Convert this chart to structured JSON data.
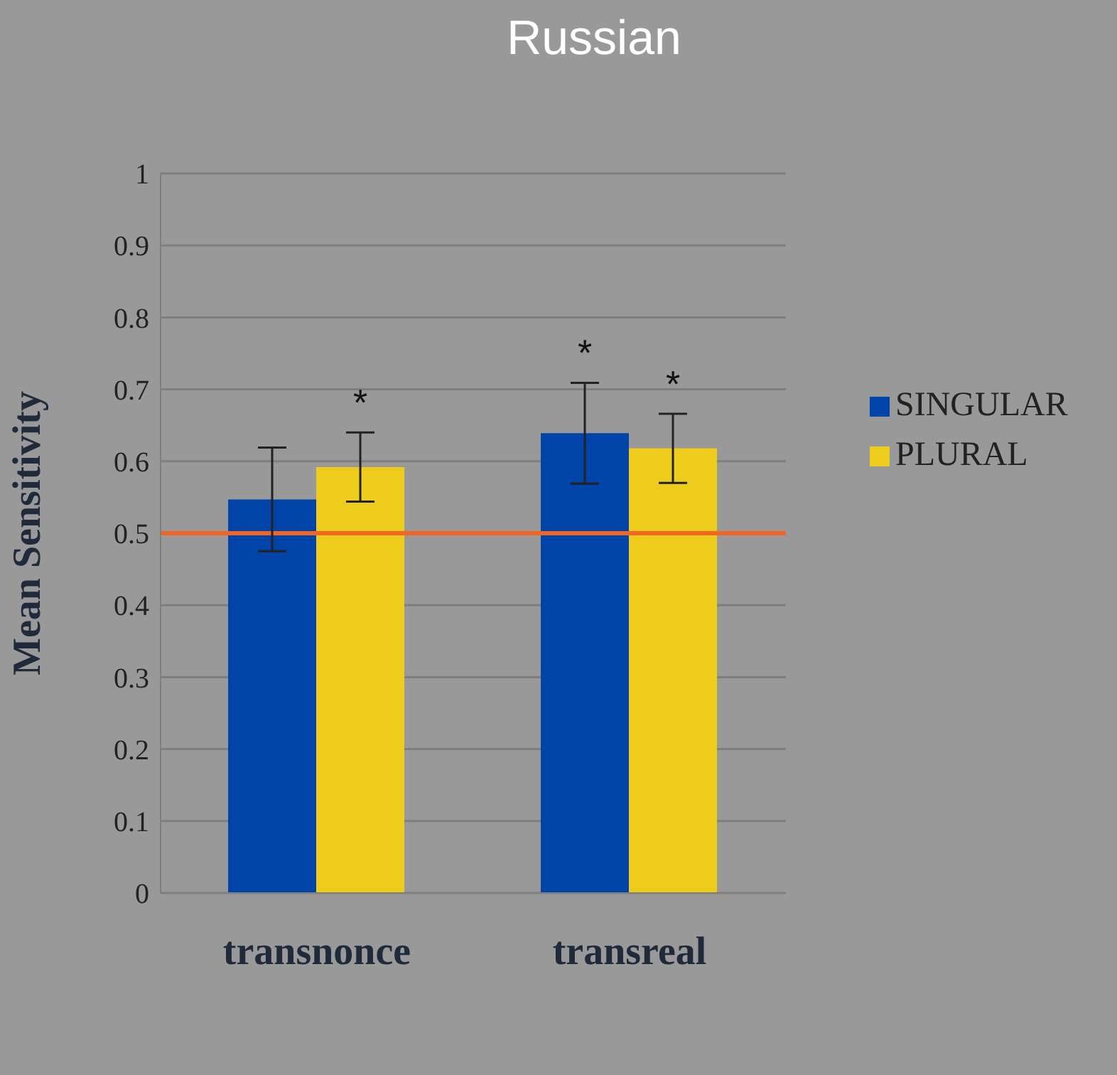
{
  "chart_data": {
    "type": "bar",
    "title": "Russian",
    "ylabel": "Mean Sensitivity",
    "categories": [
      "transnonce",
      "transreal"
    ],
    "series": [
      {
        "name": "SINGULAR",
        "color": "#0044aa",
        "values": [
          0.547,
          0.639
        ],
        "errors": [
          0.072,
          0.07
        ],
        "value_labels": [
          null,
          "*"
        ]
      },
      {
        "name": "PLURAL",
        "color": "#eecc1c",
        "values": [
          0.592,
          0.618
        ],
        "errors": [
          0.048,
          0.048
        ],
        "value_labels": [
          "*",
          "*"
        ]
      }
    ],
    "ylim": [
      0,
      1
    ],
    "yticks": [
      0,
      0.1,
      0.2,
      0.3,
      0.4,
      0.5,
      0.6,
      0.7,
      0.8,
      0.9,
      1
    ],
    "grid": "y",
    "legend": "right",
    "ref_lines": [
      {
        "axis": "y",
        "value": 0.5,
        "color": "#f26522"
      }
    ]
  }
}
